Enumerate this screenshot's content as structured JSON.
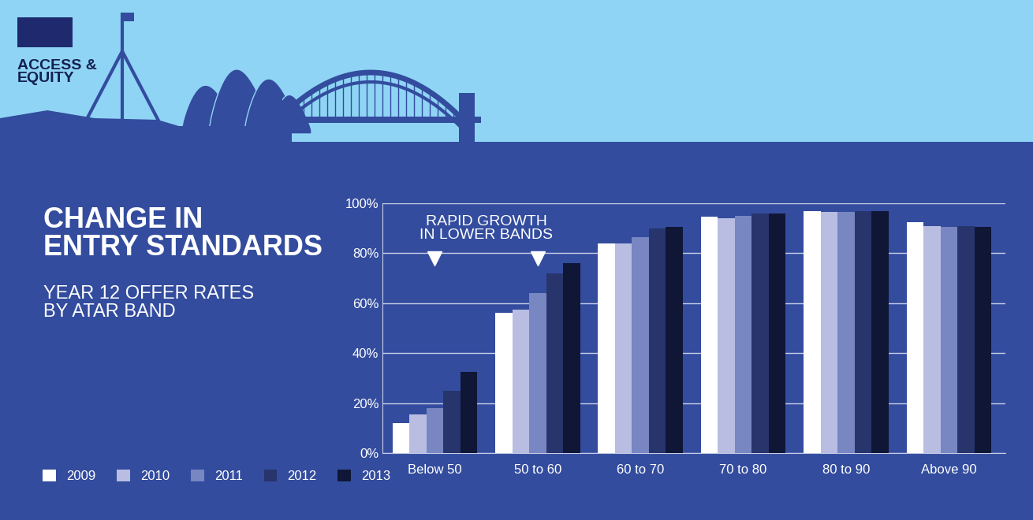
{
  "header": "ACCESS &\nEQUITY",
  "chart_data": {
    "type": "bar",
    "title": "CHANGE IN\nENTRY STANDARDS",
    "subtitle": "YEAR 12 OFFER RATES\nBY ATAR BAND",
    "annotations": [
      {
        "text": "RAPID GROWTH\nIN LOWER BANDS",
        "categories": [
          "Below 50",
          "50 to 60"
        ]
      }
    ],
    "categories": [
      "Below 50",
      "50 to 60",
      "60 to 70",
      "70 to 80",
      "80 to 90",
      "Above 90"
    ],
    "series": [
      {
        "name": "2009",
        "color": "#ffffff",
        "values": [
          12,
          56,
          84,
          94.5,
          97,
          92.5
        ]
      },
      {
        "name": "2010",
        "color": "#b9bde2",
        "values": [
          15.5,
          57.5,
          84,
          94,
          96.5,
          91
        ]
      },
      {
        "name": "2011",
        "color": "#7886c2",
        "values": [
          18,
          64,
          86.5,
          95,
          96.5,
          90.5
        ]
      },
      {
        "name": "2012",
        "color": "#28346c",
        "values": [
          25,
          72,
          90,
          96,
          97,
          91
        ]
      },
      {
        "name": "2013",
        "color": "#0f1636",
        "values": [
          32.5,
          76,
          90.5,
          96,
          97,
          90.5
        ]
      }
    ],
    "ylim": [
      0,
      100
    ],
    "yticks": [
      {
        "value": 0,
        "label": "0%"
      },
      {
        "value": 20,
        "label": "20%"
      },
      {
        "value": 40,
        "label": "40%"
      },
      {
        "value": 60,
        "label": "60%"
      },
      {
        "value": 80,
        "label": "80%"
      },
      {
        "value": 100,
        "label": "100%"
      }
    ],
    "grid": true,
    "legend": "lower left"
  }
}
